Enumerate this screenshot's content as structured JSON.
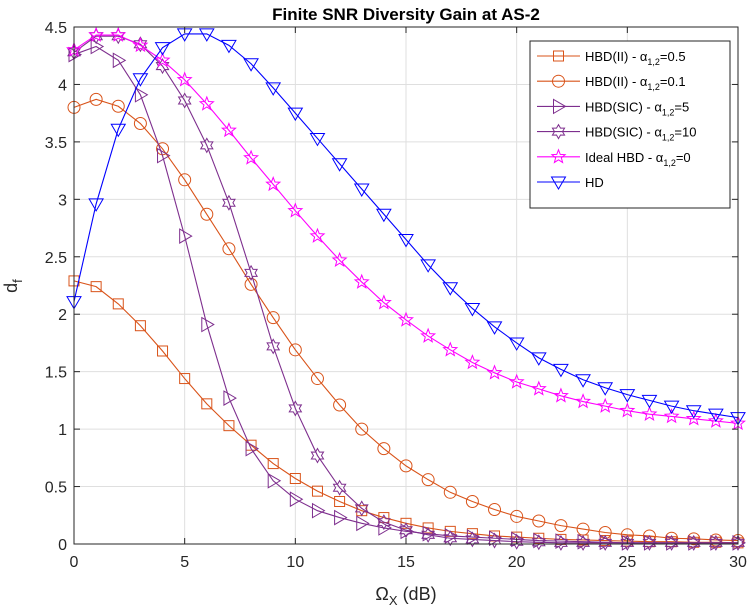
{
  "chart_data": {
    "type": "line",
    "title": "Finite SNR Diversity Gain at AS-2",
    "xlabel": "Ω",
    "xlabel_sub": "X",
    "xlabel_unit": " (dB)",
    "ylabel": "d",
    "ylabel_sub": "f",
    "xlim": [
      0,
      30
    ],
    "ylim": [
      0,
      4.5
    ],
    "xticks": [
      0,
      5,
      10,
      15,
      20,
      25,
      30
    ],
    "yticks": [
      0,
      0.5,
      1,
      1.5,
      2,
      2.5,
      3,
      3.5,
      4,
      4.5
    ],
    "ytick_labels": [
      "0",
      "0.5",
      "1",
      "1.5",
      "2",
      "2.5",
      "3",
      "3.5",
      "4",
      "4.5"
    ],
    "grid": true,
    "legend_position": "top-right",
    "x": [
      0,
      1,
      2,
      3,
      4,
      5,
      6,
      7,
      8,
      9,
      10,
      11,
      12,
      13,
      14,
      15,
      16,
      17,
      18,
      19,
      20,
      21,
      22,
      23,
      24,
      25,
      26,
      27,
      28,
      29,
      30
    ],
    "series": [
      {
        "name": "HBD(II) - α",
        "legend_sub": "1,2",
        "legend_suffix": "=0.5",
        "color": "#D95319",
        "marker": "square",
        "values": [
          2.29,
          2.24,
          2.09,
          1.9,
          1.68,
          1.44,
          1.22,
          1.03,
          0.86,
          0.7,
          0.57,
          0.46,
          0.37,
          0.29,
          0.23,
          0.18,
          0.14,
          0.11,
          0.09,
          0.07,
          0.06,
          0.05,
          0.04,
          0.035,
          0.03,
          0.025,
          0.02,
          0.02,
          0.015,
          0.015,
          0.01
        ]
      },
      {
        "name": "HBD(II) - α",
        "legend_sub": "1,2",
        "legend_suffix": "=0.1",
        "color": "#D95319",
        "marker": "circle",
        "values": [
          3.8,
          3.87,
          3.81,
          3.66,
          3.44,
          3.17,
          2.87,
          2.57,
          2.26,
          1.97,
          1.69,
          1.44,
          1.21,
          1.0,
          0.83,
          0.68,
          0.56,
          0.45,
          0.37,
          0.3,
          0.24,
          0.2,
          0.16,
          0.13,
          0.1,
          0.08,
          0.07,
          0.05,
          0.045,
          0.035,
          0.03
        ]
      },
      {
        "name": "HBD(SIC) - α",
        "legend_sub": "1,2",
        "legend_suffix": "=5",
        "color": "#7E2F8E",
        "marker": "triangle-right",
        "values": [
          4.26,
          4.33,
          4.21,
          3.91,
          3.38,
          2.68,
          1.91,
          1.27,
          0.83,
          0.55,
          0.39,
          0.29,
          0.23,
          0.18,
          0.14,
          0.11,
          0.09,
          0.07,
          0.06,
          0.05,
          0.04,
          0.03,
          0.025,
          0.02,
          0.015,
          0.01,
          0.01,
          0.01,
          0.01,
          0.01,
          0.01
        ]
      },
      {
        "name": "HBD(SIC) - α",
        "legend_sub": "1,2",
        "legend_suffix": "=10",
        "color": "#7E2F8E",
        "marker": "hexagram",
        "values": [
          4.28,
          4.42,
          4.42,
          4.35,
          4.16,
          3.86,
          3.47,
          2.97,
          2.36,
          1.72,
          1.18,
          0.77,
          0.49,
          0.31,
          0.19,
          0.12,
          0.08,
          0.05,
          0.04,
          0.03,
          0.02,
          0.015,
          0.01,
          0.01,
          0.01,
          0.01,
          0.01,
          0.01,
          0.01,
          0.01,
          0.01
        ]
      },
      {
        "name": "Ideal HBD - α",
        "legend_sub": "1,2",
        "legend_suffix": "=0",
        "color": "#FF00FF",
        "marker": "pentagram",
        "values": [
          4.3,
          4.43,
          4.43,
          4.34,
          4.21,
          4.04,
          3.83,
          3.6,
          3.36,
          3.13,
          2.9,
          2.68,
          2.47,
          2.28,
          2.1,
          1.95,
          1.81,
          1.69,
          1.58,
          1.49,
          1.41,
          1.35,
          1.29,
          1.24,
          1.2,
          1.16,
          1.13,
          1.11,
          1.09,
          1.07,
          1.05
        ]
      },
      {
        "name": "HD",
        "legend_sub": "",
        "legend_suffix": "",
        "color": "#0000FF",
        "marker": "triangle-down",
        "values": [
          2.11,
          2.96,
          3.61,
          4.05,
          4.32,
          4.44,
          4.44,
          4.34,
          4.18,
          3.97,
          3.75,
          3.53,
          3.31,
          3.09,
          2.87,
          2.65,
          2.43,
          2.23,
          2.05,
          1.89,
          1.75,
          1.62,
          1.52,
          1.43,
          1.36,
          1.3,
          1.25,
          1.2,
          1.16,
          1.13,
          1.1
        ]
      }
    ]
  }
}
